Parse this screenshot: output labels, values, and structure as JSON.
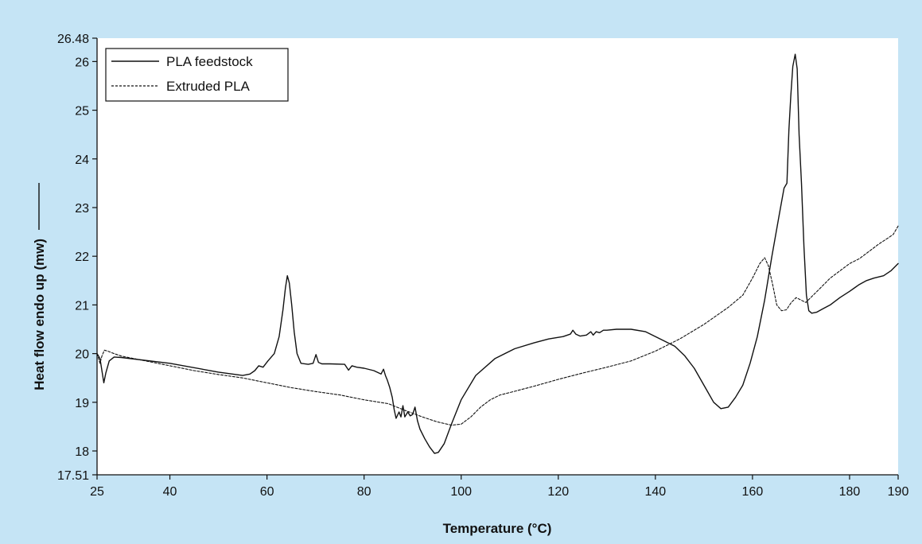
{
  "chart_data": {
    "type": "line",
    "xlabel": "Temperature (°C)",
    "ylabel": "Heat flow endo up (mw)",
    "xlim": [
      25,
      190
    ],
    "ylim": [
      17.51,
      26.48
    ],
    "x_ticks": [
      25,
      40,
      60,
      80,
      100,
      120,
      140,
      160,
      180,
      190
    ],
    "y_ticks": [
      17.51,
      18,
      19,
      20,
      21,
      22,
      23,
      24,
      25,
      26,
      26.48
    ],
    "y_tick_labels": [
      "17.51",
      "18",
      "19",
      "20",
      "21",
      "22",
      "23",
      "24",
      "25",
      "26",
      "26.48"
    ],
    "legend_position": "top-left",
    "grid": false,
    "series": [
      {
        "name": "PLA feedstock",
        "style": "solid",
        "x": [
          25,
          25.6,
          26.0,
          26.4,
          26.8,
          27.5,
          28.5,
          30,
          40,
          50,
          55,
          56.5,
          57.5,
          58.3,
          59.2,
          60.2,
          61.5,
          62.5,
          63.3,
          63.8,
          64.2,
          64.6,
          65.1,
          65.6,
          66.2,
          67,
          68.5,
          69.5,
          70.1,
          70.6,
          71.3,
          73,
          76,
          76.8,
          77.5,
          78.5,
          80,
          82,
          83.5,
          84,
          84.4,
          84.8,
          85.3,
          85.8,
          86.2,
          86.6,
          87.2,
          87.6,
          88.0,
          88.4,
          89.0,
          89.5,
          90.0,
          90.5,
          91.0,
          91.5,
          92.5,
          93.5,
          94.5,
          95.3,
          96.5,
          98,
          100,
          103,
          107,
          111,
          115,
          118,
          121,
          122.5,
          123.0,
          123.6,
          124.5,
          125.8,
          126.7,
          127.2,
          127.8,
          128.5,
          129.3,
          130,
          132,
          135,
          138,
          141,
          144,
          146,
          148,
          150,
          152,
          153.5,
          155,
          156.5,
          158,
          159.5,
          161,
          162.5,
          164,
          165.5,
          166.5,
          167.1,
          167.5,
          167.9,
          168.3,
          168.8,
          169.2,
          169.6,
          170.1,
          170.6,
          171.1,
          171.6,
          172.2,
          173.2,
          174.5,
          176,
          178,
          180,
          181,
          182,
          183.5,
          185,
          187,
          188.5,
          190
        ],
        "y": [
          20.0,
          19.9,
          19.65,
          19.4,
          19.6,
          19.85,
          19.93,
          19.92,
          19.8,
          19.62,
          19.55,
          19.58,
          19.65,
          19.75,
          19.72,
          19.85,
          20.0,
          20.35,
          20.9,
          21.35,
          21.6,
          21.45,
          21.0,
          20.45,
          20.0,
          19.8,
          19.78,
          19.8,
          19.98,
          19.82,
          19.79,
          19.79,
          19.78,
          19.66,
          19.75,
          19.72,
          19.7,
          19.65,
          19.58,
          19.68,
          19.55,
          19.45,
          19.3,
          19.1,
          18.85,
          18.67,
          18.8,
          18.7,
          18.93,
          18.7,
          18.8,
          18.72,
          18.75,
          18.9,
          18.62,
          18.45,
          18.25,
          18.08,
          17.95,
          17.97,
          18.15,
          18.55,
          19.05,
          19.55,
          19.9,
          20.1,
          20.22,
          20.3,
          20.35,
          20.4,
          20.48,
          20.4,
          20.36,
          20.38,
          20.45,
          20.38,
          20.45,
          20.43,
          20.48,
          20.48,
          20.5,
          20.5,
          20.45,
          20.3,
          20.15,
          19.96,
          19.7,
          19.35,
          19.0,
          18.87,
          18.9,
          19.1,
          19.35,
          19.8,
          20.35,
          21.1,
          22.0,
          22.85,
          23.4,
          23.5,
          24.6,
          25.3,
          25.9,
          26.15,
          25.85,
          24.5,
          23.5,
          22.2,
          21.2,
          20.88,
          20.83,
          20.85,
          20.92,
          21.0,
          21.15,
          21.28,
          21.35,
          21.42,
          21.5,
          21.55,
          21.6,
          21.7,
          21.85
        ]
      },
      {
        "name": "Extruded PLA",
        "style": "dashed",
        "x": [
          25,
          25.6,
          26.0,
          26.5,
          27.2,
          28.5,
          30,
          35,
          40,
          45,
          50,
          55,
          60,
          65,
          70,
          75,
          80,
          85,
          88,
          92,
          95,
          98,
          100,
          102,
          104,
          106,
          108,
          110,
          115,
          120,
          125,
          130,
          135,
          140,
          145,
          150,
          155,
          158,
          160,
          161.5,
          162.5,
          163.3,
          164.2,
          165,
          166,
          167,
          168,
          169,
          170,
          171,
          172,
          174,
          176,
          178,
          180,
          182,
          184,
          186,
          188,
          189,
          190
        ],
        "y": [
          20.0,
          19.8,
          19.95,
          20.07,
          20.05,
          20.0,
          19.95,
          19.85,
          19.75,
          19.65,
          19.57,
          19.5,
          19.4,
          19.3,
          19.22,
          19.15,
          19.05,
          18.97,
          18.85,
          18.7,
          18.6,
          18.53,
          18.55,
          18.7,
          18.9,
          19.05,
          19.15,
          19.2,
          19.33,
          19.47,
          19.6,
          19.72,
          19.85,
          20.05,
          20.3,
          20.6,
          20.95,
          21.2,
          21.55,
          21.85,
          21.97,
          21.8,
          21.4,
          21.0,
          20.88,
          20.9,
          21.05,
          21.15,
          21.1,
          21.05,
          21.15,
          21.35,
          21.55,
          21.7,
          21.85,
          21.95,
          22.1,
          22.25,
          22.38,
          22.45,
          22.62
        ]
      }
    ]
  }
}
